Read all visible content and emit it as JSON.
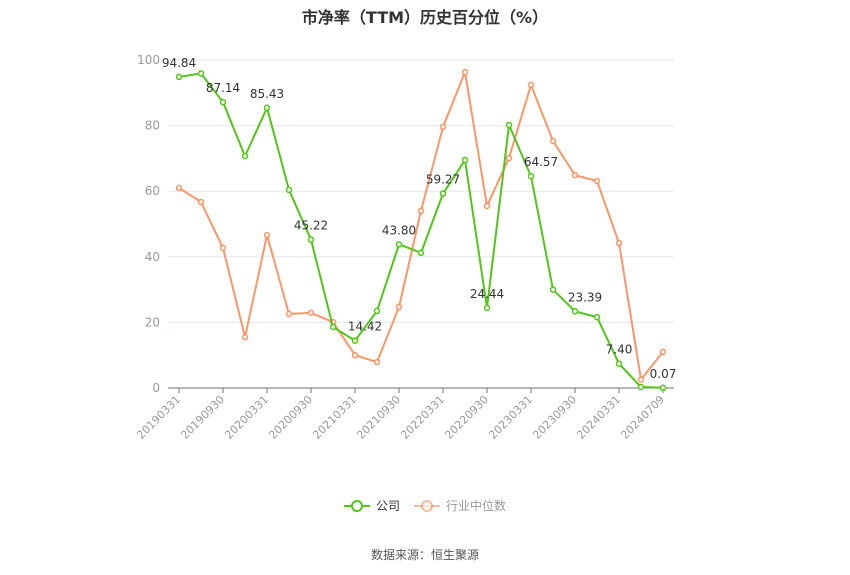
{
  "title": "市净率（TTM）历史百分位（%）",
  "source": "数据来源：恒生聚源",
  "legend": {
    "company": "公司",
    "industry": "行业中位数"
  },
  "colors": {
    "company": "#52c41a",
    "industry": "#fa8c5a",
    "grid": "#e0e6f1",
    "axis": "#6e7079",
    "tick_label": "#999999"
  },
  "chart_data": {
    "type": "line",
    "title": "市净率（TTM）历史百分位（%）",
    "xlabel": "",
    "ylabel": "",
    "ylim": [
      0,
      100
    ],
    "yticks": [
      0,
      20,
      40,
      60,
      80,
      100
    ],
    "grid": true,
    "legend_position": "bottom",
    "tick_labels": [
      "20190331",
      "20190930",
      "20200331",
      "20200930",
      "20210331",
      "20210930",
      "20220331",
      "20220930",
      "20230331",
      "20230930",
      "20240331",
      "20240709"
    ],
    "x": [
      "20190331",
      "",
      "20190930",
      "",
      "20200331",
      "",
      "20200930",
      "",
      "20210331",
      "",
      "20210930",
      "",
      "20220331",
      "",
      "20220930",
      "",
      "20230331",
      "",
      "20230930",
      "",
      "20240331",
      "",
      "20240709"
    ],
    "series": [
      {
        "name": "公司",
        "values": [
          94.84,
          95.9,
          87.14,
          70.7,
          85.43,
          60.4,
          45.22,
          18.6,
          14.42,
          23.5,
          43.8,
          41.2,
          59.27,
          69.5,
          24.44,
          80.2,
          64.57,
          30.0,
          23.39,
          21.6,
          7.4,
          0.3,
          0.07
        ],
        "labels": [
          "94.84",
          "",
          "87.14",
          "",
          "85.43",
          "",
          "45.22",
          "",
          "14.42",
          "",
          "43.80",
          "",
          "59.27",
          "",
          "24.44",
          "",
          "64.57",
          "",
          "23.39",
          "",
          "7.40",
          "",
          "0.07"
        ]
      },
      {
        "name": "行业中位数",
        "values": [
          61.0,
          56.7,
          42.7,
          15.5,
          46.6,
          22.6,
          22.9,
          20.1,
          10.0,
          7.9,
          24.7,
          54.0,
          79.6,
          96.3,
          55.5,
          70.1,
          92.4,
          75.3,
          64.9,
          63.1,
          44.2,
          2.6,
          11.0
        ]
      }
    ]
  }
}
